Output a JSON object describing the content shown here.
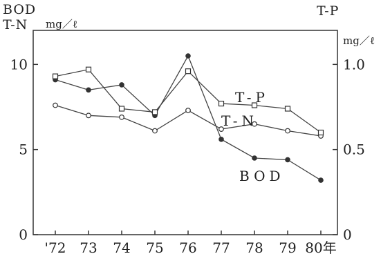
{
  "chart_data": {
    "type": "line",
    "x": [
      "'72",
      "73",
      "74",
      "75",
      "76",
      "77",
      "78",
      "79",
      "80年"
    ],
    "left_axis": {
      "title_line1": "BOD",
      "title_line2": "T-N",
      "unit": "mg／ℓ",
      "ylim": [
        0,
        12
      ],
      "ticks": [
        0,
        5,
        10
      ],
      "tick_labels": [
        "0",
        "5",
        "10"
      ]
    },
    "right_axis": {
      "title": "T-P",
      "unit": "mg／ℓ",
      "ylim": [
        0,
        1.2
      ],
      "ticks": [
        0,
        0.5,
        1.0
      ],
      "tick_labels": [
        "0",
        "0.5",
        "1.0"
      ]
    },
    "series": [
      {
        "name": "BOD",
        "axis": "left",
        "marker": "filled-circle",
        "values": [
          9.1,
          8.5,
          8.8,
          7.0,
          10.5,
          5.6,
          4.5,
          4.4,
          3.2
        ]
      },
      {
        "name": "T-N",
        "axis": "left",
        "marker": "open-circle",
        "values": [
          7.6,
          7.0,
          6.9,
          6.1,
          7.3,
          6.2,
          6.5,
          6.1,
          5.8
        ]
      },
      {
        "name": "T-P",
        "axis": "right",
        "marker": "open-square",
        "values": [
          0.93,
          0.97,
          0.74,
          0.72,
          0.96,
          0.77,
          0.76,
          0.74,
          0.6
        ]
      }
    ],
    "series_labels": {
      "tp": "T-P",
      "tn": "T-N",
      "bod": "BOD"
    },
    "grid": false
  }
}
